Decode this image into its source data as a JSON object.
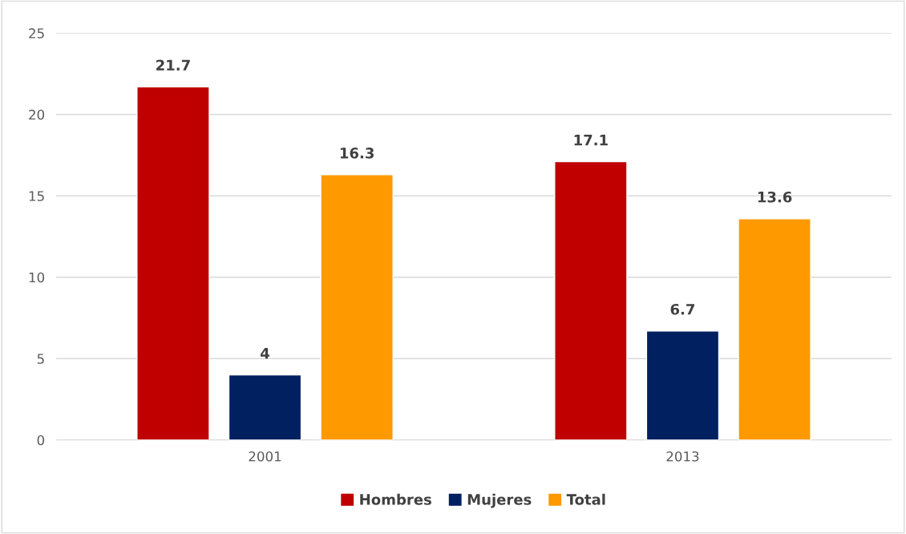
{
  "chart_data": {
    "type": "bar",
    "categories": [
      "2001",
      "2013"
    ],
    "series": [
      {
        "name": "Hombres",
        "color": "#c00000",
        "values": [
          21.7,
          17.1
        ]
      },
      {
        "name": "Mujeres",
        "color": "#002060",
        "values": [
          4,
          6.7
        ]
      },
      {
        "name": "Total",
        "color": "#ff9900",
        "values": [
          16.3,
          13.6
        ]
      }
    ],
    "ylim": [
      0,
      25
    ],
    "yticks": [
      0,
      5,
      10,
      15,
      20,
      25
    ],
    "grid": "y",
    "legend": "bottom",
    "data_labels": true
  }
}
